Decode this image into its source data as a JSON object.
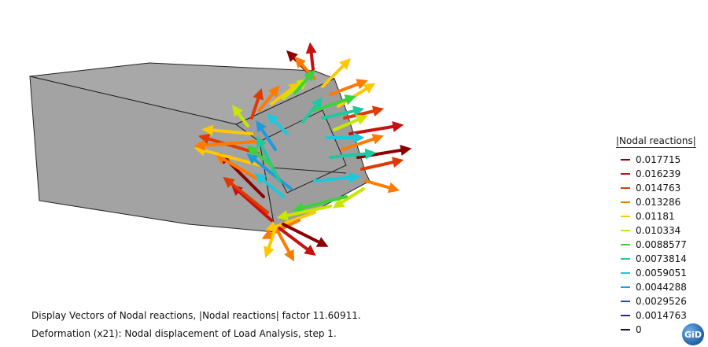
{
  "legend": {
    "title": "|Nodal reactions|",
    "entries": [
      {
        "label": "0.017715",
        "color": "#8b0000"
      },
      {
        "label": "0.016239",
        "color": "#c81010"
      },
      {
        "label": "0.014763",
        "color": "#e03a00"
      },
      {
        "label": "0.013286",
        "color": "#ff7a00"
      },
      {
        "label": "0.01181",
        "color": "#ffc800"
      },
      {
        "label": "0.010334",
        "color": "#c8e600"
      },
      {
        "label": "0.0088577",
        "color": "#3cd23c"
      },
      {
        "label": "0.0073814",
        "color": "#1ec8a0"
      },
      {
        "label": "0.0059051",
        "color": "#1ec8dc"
      },
      {
        "label": "0.0044288",
        "color": "#1e9bdc"
      },
      {
        "label": "0.0029526",
        "color": "#1e46d2"
      },
      {
        "label": "0.0014763",
        "color": "#1e2896"
      },
      {
        "label": "0",
        "color": "#111144"
      }
    ]
  },
  "captions": {
    "line1": "Display Vectors of Nodal reactions, |Nodal reactions| factor 11.60911.",
    "line2": "Deformation (x21): Nodal displacement of Load Analysis, step 1."
  },
  "logo": {
    "text": "GiD"
  }
}
